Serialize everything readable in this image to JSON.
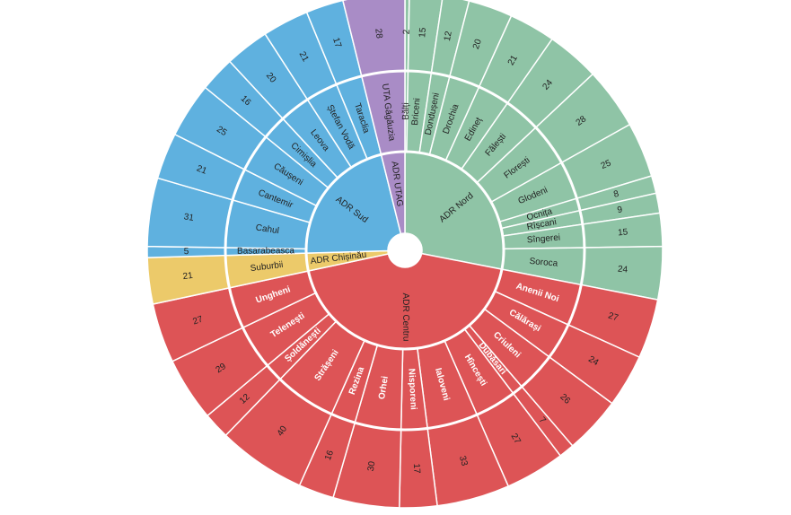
{
  "chart_data": {
    "type": "sunburst",
    "colors": {
      "ADR Nord": "#8fc4a6",
      "ADR UTAG": "#a98cc6",
      "ADR Sud": "#5fb1df",
      "ADR Chișinău": "#ecca6a",
      "ADR Centru": "#dd5456"
    },
    "regions": [
      {
        "name": "ADR Nord",
        "districts": [
          {
            "name": "Bălți",
            "value": 2
          },
          {
            "name": "Briceni",
            "value": 15
          },
          {
            "name": "Dondușeni",
            "value": 12
          },
          {
            "name": "Drochia",
            "value": 20
          },
          {
            "name": "Edineț",
            "value": 21
          },
          {
            "name": "Fălești",
            "value": 24
          },
          {
            "name": "Florești",
            "value": 28
          },
          {
            "name": "Glodeni",
            "value": 25
          },
          {
            "name": "Ocnița",
            "value": 8
          },
          {
            "name": "Rîșcani",
            "value": 9
          },
          {
            "name": "Sîngerei",
            "value": 15
          },
          {
            "name": "Soroca",
            "value": 24
          }
        ]
      },
      {
        "name": "ADR Centru",
        "districts": [
          {
            "name": "Anenii Noi",
            "value": 27
          },
          {
            "name": "Călărași",
            "value": 24
          },
          {
            "name": "Criuleni",
            "value": 26
          },
          {
            "name": "Dubăsari",
            "value": 7
          },
          {
            "name": "Hîncești",
            "value": 27
          },
          {
            "name": "Ialoveni",
            "value": 33
          },
          {
            "name": "Nisporeni",
            "value": 17
          },
          {
            "name": "Orhei",
            "value": 30
          },
          {
            "name": "Rezina",
            "value": 16
          },
          {
            "name": "Strășeni",
            "value": 40
          },
          {
            "name": "Șoldănești",
            "value": 12
          },
          {
            "name": "Telenești",
            "value": 29
          },
          {
            "name": "Ungheni",
            "value": 27
          }
        ]
      },
      {
        "name": "ADR Chișinău",
        "districts": [
          {
            "name": "Suburbii",
            "value": 21
          }
        ]
      },
      {
        "name": "ADR Sud",
        "districts": [
          {
            "name": "Basarabeasca",
            "value": 5
          },
          {
            "name": "Cahul",
            "value": 31
          },
          {
            "name": "Cantemir",
            "value": 21
          },
          {
            "name": "Căușeni",
            "value": 25
          },
          {
            "name": "Cimișlia",
            "value": 16
          },
          {
            "name": "Leova",
            "value": 20
          },
          {
            "name": "Ștefan Vodă",
            "value": 21
          },
          {
            "name": "Taraclia",
            "value": 17
          }
        ]
      },
      {
        "name": "ADR UTAG",
        "districts": [
          {
            "name": "UTA Găgăuzia",
            "value": 28
          }
        ]
      }
    ]
  }
}
